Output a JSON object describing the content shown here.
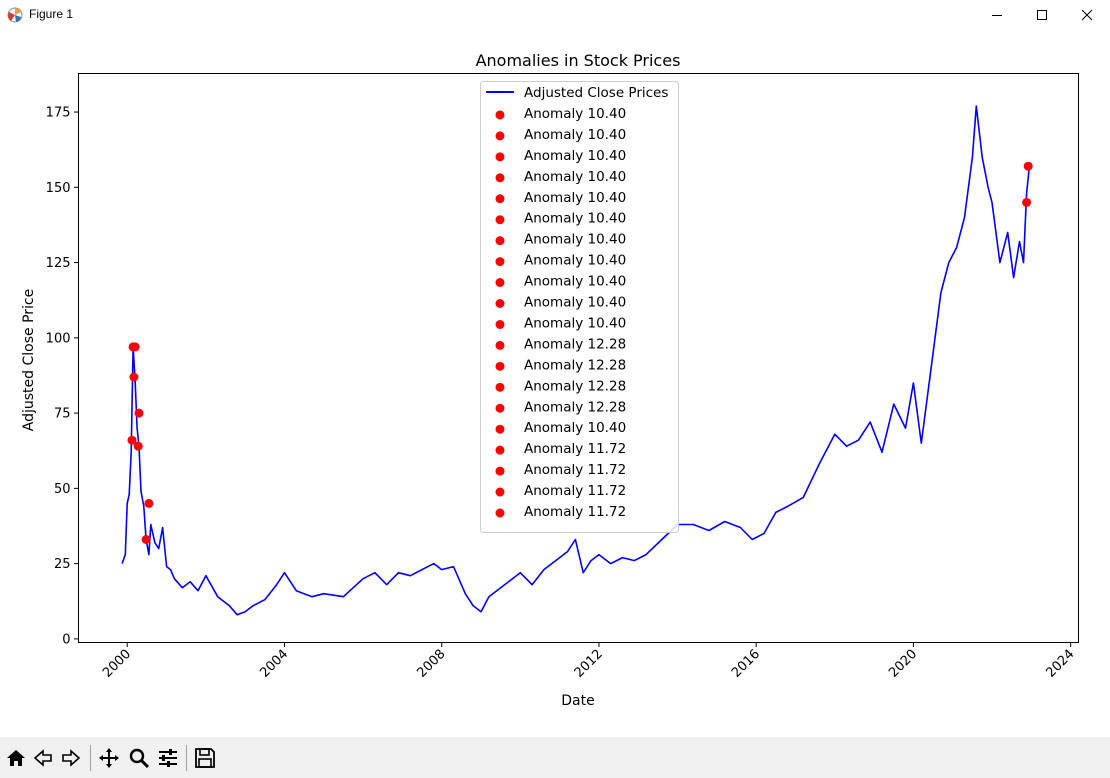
{
  "window": {
    "title": "Figure 1"
  },
  "toolbar": {
    "buttons": [
      "home-icon",
      "back-icon",
      "forward-icon",
      "pan-icon",
      "zoom-icon",
      "configure-subplots-icon",
      "save-icon"
    ]
  },
  "colors": {
    "line": "#0000ff",
    "anomaly": "#ff0000",
    "toolbar_bg": "#f0f0f0"
  },
  "chart_data": {
    "type": "line",
    "title": "Anomalies in Stock Prices",
    "xlabel": "Date",
    "ylabel": "Adjusted Close Price",
    "x_ticks": [
      "2000",
      "2004",
      "2008",
      "2012",
      "2016",
      "2020",
      "2024"
    ],
    "y_ticks": [
      "0",
      "25",
      "50",
      "75",
      "100",
      "125",
      "150",
      "175"
    ],
    "xlim": [
      1998.76,
      2024.2
    ],
    "ylim": [
      -1.2,
      187.8
    ],
    "grid": false,
    "legend_placement": "upper center",
    "series": [
      {
        "name": "Adjusted Close Prices",
        "color": "#0000ff",
        "x": [
          1999.87,
          1999.95,
          2000.0,
          2000.05,
          2000.1,
          2000.15,
          2000.2,
          2000.25,
          2000.3,
          2000.35,
          2000.42,
          2000.48,
          2000.55,
          2000.6,
          2000.7,
          2000.8,
          2000.9,
          2001.0,
          2001.1,
          2001.2,
          2001.4,
          2001.6,
          2001.8,
          2002.0,
          2002.3,
          2002.6,
          2002.8,
          2003.0,
          2003.2,
          2003.5,
          2003.8,
          2004.0,
          2004.1,
          2004.3,
          2004.5,
          2004.7,
          2005.0,
          2005.5,
          2006.0,
          2006.3,
          2006.6,
          2006.9,
          2007.2,
          2007.5,
          2007.8,
          2008.0,
          2008.3,
          2008.6,
          2008.8,
          2009.0,
          2009.2,
          2009.5,
          2009.8,
          2010.0,
          2010.3,
          2010.6,
          2010.9,
          2011.2,
          2011.4,
          2011.6,
          2011.8,
          2012.0,
          2012.3,
          2012.6,
          2012.9,
          2013.2,
          2013.6,
          2014.0,
          2014.4,
          2014.8,
          2015.2,
          2015.6,
          2015.9,
          2016.2,
          2016.5,
          2016.8,
          2017.2,
          2017.6,
          2018.0,
          2018.3,
          2018.6,
          2018.9,
          2019.2,
          2019.5,
          2019.8,
          2020.0,
          2020.2,
          2020.35,
          2020.5,
          2020.7,
          2020.9,
          2021.1,
          2021.3,
          2021.5,
          2021.6,
          2021.75,
          2021.9,
          2022.0,
          2022.2,
          2022.4,
          2022.55,
          2022.7,
          2022.8,
          2022.88,
          2022.95
        ],
        "y": [
          25,
          28,
          45,
          48,
          62,
          97,
          86,
          70,
          64,
          49,
          44,
          33,
          28,
          38,
          32,
          30,
          37,
          24,
          23,
          20,
          17,
          19,
          16,
          21,
          14,
          11,
          8,
          9,
          11,
          13,
          18,
          22,
          20,
          16,
          15,
          14,
          15,
          14,
          20,
          22,
          18,
          22,
          21,
          23,
          25,
          23,
          24,
          15,
          11,
          9,
          14,
          17,
          20,
          22,
          18,
          23,
          26,
          29,
          33,
          22,
          26,
          28,
          25,
          27,
          26,
          28,
          33,
          38,
          38,
          36,
          39,
          37,
          33,
          35,
          42,
          44,
          47,
          58,
          68,
          64,
          66,
          72,
          62,
          78,
          70,
          85,
          65,
          80,
          95,
          115,
          125,
          130,
          140,
          160,
          177,
          160,
          150,
          145,
          125,
          135,
          120,
          132,
          125,
          148,
          157
        ]
      }
    ],
    "anomalies": {
      "color": "#ff0000",
      "x": [
        2000.15,
        2000.2,
        2000.17,
        2000.12,
        2000.3,
        2000.28,
        2000.55,
        2000.48,
        2022.88,
        2022.92
      ],
      "y": [
        97,
        97,
        87,
        66,
        75,
        64,
        45,
        33,
        145,
        157
      ]
    },
    "legend": [
      {
        "label": "Adjusted Close Prices",
        "kind": "line"
      },
      {
        "label": "Anomaly 10.40",
        "kind": "marker"
      },
      {
        "label": "Anomaly 10.40",
        "kind": "marker"
      },
      {
        "label": "Anomaly 10.40",
        "kind": "marker"
      },
      {
        "label": "Anomaly 10.40",
        "kind": "marker"
      },
      {
        "label": "Anomaly 10.40",
        "kind": "marker"
      },
      {
        "label": "Anomaly 10.40",
        "kind": "marker"
      },
      {
        "label": "Anomaly 10.40",
        "kind": "marker"
      },
      {
        "label": "Anomaly 10.40",
        "kind": "marker"
      },
      {
        "label": "Anomaly 10.40",
        "kind": "marker"
      },
      {
        "label": "Anomaly 10.40",
        "kind": "marker"
      },
      {
        "label": "Anomaly 10.40",
        "kind": "marker"
      },
      {
        "label": "Anomaly 12.28",
        "kind": "marker"
      },
      {
        "label": "Anomaly 12.28",
        "kind": "marker"
      },
      {
        "label": "Anomaly 12.28",
        "kind": "marker"
      },
      {
        "label": "Anomaly 12.28",
        "kind": "marker"
      },
      {
        "label": "Anomaly 10.40",
        "kind": "marker"
      },
      {
        "label": "Anomaly 11.72",
        "kind": "marker"
      },
      {
        "label": "Anomaly 11.72",
        "kind": "marker"
      },
      {
        "label": "Anomaly 11.72",
        "kind": "marker"
      },
      {
        "label": "Anomaly 11.72",
        "kind": "marker"
      }
    ]
  }
}
